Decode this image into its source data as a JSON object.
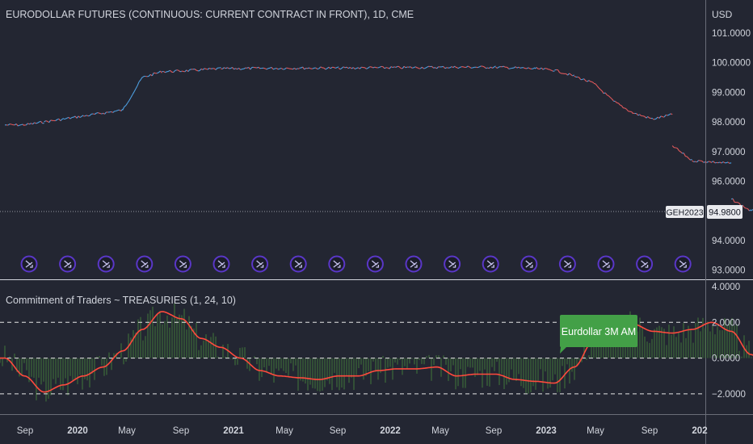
{
  "colors": {
    "background": "#232632",
    "text": "#d1d4dc",
    "muted_text": "#b2b5be",
    "divider": "#d1d4dc",
    "up_candle": "#4e9fe0",
    "down_candle": "#e0595c",
    "cot_line": "#ff4a3d",
    "cot_histogram": "#3d6b3a",
    "label_green": "#43a047",
    "event_icon": "#5a37c8"
  },
  "main_pane": {
    "title": "EURODOLLAR FUTURES (CONTINUOUS: CURRENT CONTRACT IN FRONT), 1D, CME",
    "currency": "USD",
    "symbol_label": "GEH2023",
    "last_price_label": "94.9800",
    "last_price": 94.98,
    "y_ticks": [
      "101.0000",
      "100.0000",
      "99.0000",
      "98.0000",
      "97.0000",
      "96.0000",
      "94.0000",
      "93.0000"
    ],
    "event_icon_count": 18,
    "event_icon_name": "split-arrow-icon"
  },
  "lower_pane": {
    "title": "Commitment of Traders ~ TREASURIES (1, 24, 10)",
    "y_ticks": [
      "4.0000",
      "2.0000",
      "0.0000",
      "−2.0000"
    ],
    "callout_label": "Eurdollar 3M AM"
  },
  "x_axis": {
    "labels": [
      "Sep",
      "2020",
      "May",
      "Sep",
      "2021",
      "May",
      "Sep",
      "2022",
      "May",
      "Sep",
      "2023",
      "May",
      "Sep",
      "202"
    ],
    "bold": [
      false,
      true,
      false,
      false,
      true,
      false,
      false,
      true,
      false,
      false,
      true,
      false,
      false,
      true
    ]
  },
  "chart_data": [
    {
      "type": "line",
      "title": "EURODOLLAR FUTURES (CONTINUOUS: CURRENT CONTRACT IN FRONT), 1D, CME",
      "ylabel": "USD",
      "ylim": [
        92.8,
        101.3
      ],
      "x": [
        "2019-08",
        "2019-09",
        "2019-10",
        "2019-11",
        "2019-12",
        "2020-01",
        "2020-02",
        "2020-03",
        "2020-04",
        "2020-05",
        "2020-07",
        "2020-09",
        "2020-11",
        "2021-01",
        "2021-03",
        "2021-05",
        "2021-07",
        "2021-09",
        "2021-11",
        "2021-12",
        "2022-01",
        "2022-02",
        "2022-03",
        "2022-04",
        "2022-05",
        "2022-06",
        "2022-06",
        "2022-07",
        "2022-08",
        "2022-09",
        "2022-09",
        "2022-10",
        "2022-11",
        "2022-12",
        "2023-01"
      ],
      "series": [
        {
          "values": [
            97.9,
            97.9,
            98.0,
            98.1,
            98.2,
            98.3,
            98.4,
            99.5,
            99.7,
            99.72,
            99.8,
            99.81,
            99.82,
            99.82,
            99.83,
            99.84,
            99.85,
            99.85,
            99.8,
            99.75,
            99.55,
            99.3,
            98.7,
            98.3,
            98.1,
            98.25,
            97.2,
            96.7,
            96.65,
            96.6,
            95.4,
            95.0,
            95.1,
            94.98,
            94.98
          ]
        }
      ]
    },
    {
      "type": "line",
      "title": "Commitment of Traders ~ TREASURIES (1, 24, 10)",
      "ylim": [
        -3.0,
        4.0
      ],
      "x": [
        "2019-08",
        "2019-09",
        "2019-10",
        "2019-11",
        "2019-12",
        "2020-01",
        "2020-02",
        "2020-03",
        "2020-04",
        "2020-05",
        "2020-06",
        "2020-07",
        "2020-08",
        "2020-09",
        "2020-10",
        "2020-11",
        "2020-12",
        "2021-01",
        "2021-02",
        "2021-03",
        "2021-04",
        "2021-05",
        "2021-06",
        "2021-07",
        "2021-08",
        "2021-09",
        "2021-10",
        "2021-11",
        "2021-12",
        "2022-01",
        "2022-02",
        "2022-03",
        "2022-04",
        "2022-05",
        "2022-06",
        "2022-07",
        "2022-08",
        "2022-09",
        "2022-10",
        "2022-11",
        "2022-12",
        "2023-01"
      ],
      "series": [
        {
          "values": [
            0.0,
            -1.0,
            -1.9,
            -1.5,
            -1.0,
            -0.5,
            0.4,
            1.6,
            2.6,
            2.2,
            1.1,
            0.6,
            0.0,
            -0.7,
            -1.0,
            -1.1,
            -1.2,
            -1.0,
            -1.0,
            -0.7,
            -0.6,
            -0.6,
            -0.5,
            -1.0,
            -0.9,
            -0.9,
            -1.2,
            -1.3,
            -1.4,
            -0.5,
            1.0,
            1.6,
            1.9,
            1.5,
            1.4,
            1.6,
            2.0,
            1.5,
            0.2,
            -0.7,
            -1.6,
            -1.6
          ]
        }
      ]
    }
  ]
}
